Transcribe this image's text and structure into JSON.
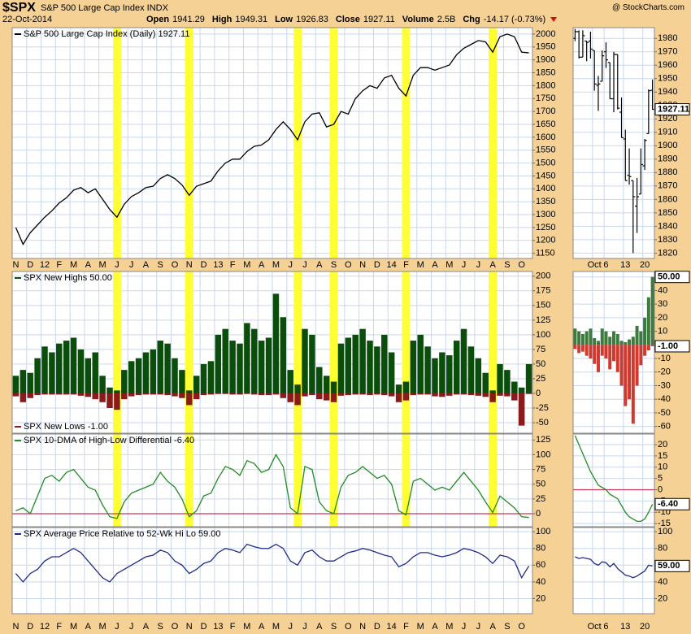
{
  "header": {
    "symbol": "$SPX",
    "name": "S&P 500 Large Cap Index INDX",
    "date": "22-Oct-2014",
    "quote": [
      {
        "label": "Open",
        "value": "1941.29"
      },
      {
        "label": "High",
        "value": "1949.31"
      },
      {
        "label": "Low",
        "value": "1926.83"
      },
      {
        "label": "Close",
        "value": "1927.11"
      },
      {
        "label": "Volume",
        "value": "2.5B"
      },
      {
        "label": "Chg",
        "value": "-14.17 (-0.73%)"
      }
    ],
    "source": "@ StockCharts.com"
  },
  "chart_data": [
    {
      "type": "line",
      "categories": [
        "N",
        null,
        "D",
        null,
        "12",
        null,
        "F",
        null,
        "M",
        null,
        "A",
        null,
        "M",
        null,
        "J",
        null,
        "J",
        null,
        "A",
        null,
        "S",
        null,
        "O",
        null,
        "N",
        null,
        "D",
        null,
        "13",
        null,
        "F",
        null,
        "M",
        null,
        "A",
        null,
        "M",
        null,
        "J",
        null,
        "J",
        null,
        "A",
        null,
        "S",
        null,
        "O",
        null,
        "N",
        null,
        "D",
        null,
        "14",
        null,
        "F",
        null,
        "M",
        null,
        "A",
        null,
        "M",
        null,
        "J",
        null,
        "J",
        null,
        "A",
        null,
        "S",
        null,
        "O",
        null
      ],
      "series": [
        {
          "name": "S&P 500 Large Cap Index (Daily) 1927.11",
          "color": "#000000",
          "values": [
            1250,
            1185,
            1230,
            1260,
            1290,
            1315,
            1345,
            1365,
            1395,
            1405,
            1385,
            1400,
            1360,
            1320,
            1290,
            1340,
            1370,
            1385,
            1405,
            1410,
            1440,
            1455,
            1440,
            1415,
            1375,
            1410,
            1420,
            1430,
            1470,
            1500,
            1515,
            1515,
            1545,
            1565,
            1570,
            1590,
            1630,
            1660,
            1630,
            1590,
            1660,
            1690,
            1695,
            1640,
            1650,
            1700,
            1690,
            1750,
            1780,
            1800,
            1790,
            1830,
            1840,
            1790,
            1760,
            1840,
            1870,
            1870,
            1860,
            1870,
            1880,
            1920,
            1945,
            1960,
            1975,
            1970,
            1930,
            1990,
            2000,
            1990,
            1930,
            1927.11
          ]
        }
      ],
      "ylim": [
        1130,
        2025
      ],
      "yticks": [
        1150,
        1200,
        1250,
        1300,
        1350,
        1400,
        1450,
        1500,
        1550,
        1600,
        1650,
        1700,
        1750,
        1800,
        1850,
        1900,
        1950,
        2000
      ],
      "grid": true,
      "highlights": [
        14,
        24,
        39,
        44,
        54,
        66
      ],
      "highlight_color": "#ffff33"
    },
    {
      "type": "ohlc",
      "categories": [
        null,
        null,
        null,
        null,
        null,
        "Oct",
        null,
        null,
        "6",
        null,
        null,
        null,
        null,
        "13",
        null,
        null,
        null,
        null,
        "20",
        null,
        null
      ],
      "open": [
        1980,
        1985,
        1966,
        1978,
        1978,
        1971,
        1945,
        1948,
        1970,
        1962,
        1935,
        1968,
        1925,
        1905,
        1878,
        1874,
        1855,
        1864,
        1885,
        1909,
        1941.29
      ],
      "high": [
        1987,
        1986,
        1986,
        1978,
        1985,
        1971,
        1952,
        1971,
        1977,
        1962,
        1970,
        1968,
        1936,
        1912,
        1898,
        1874,
        1876,
        1898,
        1905,
        1942,
        1949.31
      ],
      "low": [
        1978,
        1965,
        1966,
        1963,
        1965,
        1941,
        1926,
        1948,
        1958,
        1935,
        1925,
        1927,
        1906,
        1874,
        1871,
        1820,
        1835,
        1864,
        1882,
        1909,
        1926.83
      ],
      "close": [
        1985,
        1966,
        1982,
        1977,
        1972,
        1946,
        1946,
        1967,
        1964,
        1935,
        1968,
        1928,
        1906,
        1874,
        1877,
        1862,
        1862,
        1886,
        1904,
        1941,
        1927.11
      ],
      "color": "#000000",
      "last_label": "1927.11",
      "ylim": [
        1816,
        1988
      ],
      "yticks": [
        1820,
        1830,
        1840,
        1850,
        1860,
        1870,
        1880,
        1890,
        1900,
        1910,
        1920,
        1930,
        1940,
        1950,
        1960,
        1970,
        1980
      ],
      "grid": true
    },
    {
      "type": "bar",
      "series": [
        {
          "name": "SPX New Highs 50.00",
          "color": "#0b4d0b",
          "values": [
            30,
            40,
            35,
            60,
            80,
            70,
            85,
            90,
            95,
            75,
            60,
            70,
            30,
            10,
            5,
            40,
            55,
            60,
            70,
            75,
            90,
            85,
            60,
            40,
            5,
            30,
            50,
            55,
            100,
            110,
            90,
            85,
            120,
            110,
            90,
            95,
            170,
            130,
            40,
            15,
            110,
            100,
            45,
            30,
            20,
            85,
            95,
            100,
            110,
            90,
            80,
            100,
            70,
            15,
            20,
            90,
            100,
            80,
            60,
            70,
            65,
            90,
            110,
            80,
            60,
            35,
            5,
            50,
            40,
            20,
            10,
            50
          ]
        },
        {
          "name": "SPX New Lows -1.00",
          "color": "#8b1a1a",
          "values": [
            -5,
            -15,
            -8,
            -3,
            -2,
            -2,
            -2,
            -2,
            -2,
            -4,
            -6,
            -10,
            -15,
            -25,
            -28,
            -10,
            -5,
            -3,
            -2,
            -2,
            -2,
            -3,
            -5,
            -8,
            -20,
            -10,
            -3,
            -2,
            -1,
            -1,
            -2,
            -2,
            -1,
            -2,
            -3,
            -3,
            -2,
            -8,
            -15,
            -20,
            -5,
            -3,
            -10,
            -12,
            -15,
            -4,
            -3,
            -2,
            -2,
            -3,
            -2,
            -3,
            -5,
            -15,
            -12,
            -3,
            -2,
            -2,
            -5,
            -6,
            -4,
            -2,
            -2,
            -3,
            -4,
            -6,
            -15,
            -4,
            -5,
            -12,
            -55,
            -1
          ]
        }
      ],
      "ylim": [
        -68,
        208
      ],
      "yticks": [
        -50,
        -25,
        0,
        25,
        50,
        75,
        100,
        125,
        150,
        175,
        200
      ],
      "grid": true,
      "highlights": [
        14,
        24,
        39,
        44,
        54,
        66
      ],
      "highlight_color": "#ffff33"
    },
    {
      "type": "bar",
      "series": [
        {
          "color": "#3d7a3d",
          "last_label": "50.00",
          "values": [
            12,
            10,
            8,
            10,
            12,
            5,
            3,
            12,
            10,
            6,
            10,
            8,
            3,
            2,
            4,
            6,
            14,
            10,
            20,
            35,
            50
          ]
        },
        {
          "color": "#d03a2e",
          "last_label": "-1.00",
          "values": [
            -3,
            -6,
            -5,
            -8,
            -10,
            -14,
            -20,
            -8,
            -10,
            -18,
            -12,
            -20,
            -30,
            -45,
            -40,
            -58,
            -30,
            -15,
            -8,
            -4,
            -1
          ]
        }
      ],
      "ylim": [
        -65,
        54
      ],
      "yticks": [
        -60,
        -50,
        -40,
        -30,
        -20,
        -10,
        0,
        10,
        20,
        30,
        40,
        50
      ],
      "grid": true
    },
    {
      "type": "line",
      "series": [
        {
          "name": "SPX 10-DMA of High-Low Differential -6.40",
          "color": "#228b22",
          "values": [
            5,
            10,
            0,
            30,
            60,
            65,
            55,
            70,
            75,
            60,
            45,
            40,
            15,
            -5,
            -8,
            20,
            35,
            40,
            45,
            50,
            70,
            55,
            45,
            25,
            -5,
            5,
            30,
            35,
            60,
            80,
            75,
            65,
            90,
            85,
            70,
            75,
            100,
            80,
            10,
            0,
            80,
            75,
            20,
            5,
            0,
            45,
            65,
            70,
            80,
            70,
            60,
            65,
            50,
            5,
            -2,
            55,
            60,
            50,
            40,
            45,
            40,
            55,
            70,
            55,
            40,
            20,
            2,
            30,
            20,
            10,
            -5,
            -6.4
          ]
        }
      ],
      "ylim": [
        -22,
        135
      ],
      "yticks": [
        0,
        25,
        50,
        75,
        100,
        125
      ],
      "grid": true,
      "hline": 0,
      "hline_color": "#c8375a",
      "highlights": [
        14,
        24,
        39,
        44,
        54,
        66
      ],
      "highlight_color": "#ffff33"
    },
    {
      "type": "line",
      "series": [
        {
          "color": "#228b22",
          "last_label": "-6.40",
          "values": [
            24,
            20,
            16,
            12,
            8,
            5,
            2,
            1,
            0,
            -2,
            -3,
            -4,
            -7,
            -10,
            -12,
            -13,
            -14,
            -14,
            -13,
            -10,
            -6.4
          ]
        }
      ],
      "ylim": [
        -16.4,
        24.7
      ],
      "yticks": [
        -15,
        -10,
        -5,
        0,
        5,
        10,
        15,
        20
      ],
      "grid": true,
      "hline": 0,
      "hline_color": "#c8375a"
    },
    {
      "type": "line",
      "categories": [
        "N",
        null,
        "D",
        null,
        "12",
        null,
        "F",
        null,
        "M",
        null,
        "A",
        null,
        "M",
        null,
        "J",
        null,
        "J",
        null,
        "A",
        null,
        "S",
        null,
        "O",
        null,
        "N",
        null,
        "D",
        null,
        "13",
        null,
        "F",
        null,
        "M",
        null,
        "A",
        null,
        "M",
        null,
        "J",
        null,
        "J",
        null,
        "A",
        null,
        "S",
        null,
        "O",
        null,
        "N",
        null,
        "D",
        null,
        "14",
        null,
        "F",
        null,
        "M",
        null,
        "A",
        null,
        "M",
        null,
        "J",
        null,
        "J",
        null,
        "A",
        null,
        "S",
        null,
        "O",
        null
      ],
      "series": [
        {
          "name": "SPX Average Price Relative to 52-Wk Hi Lo 59.00",
          "color": "#1f2a8a",
          "values": [
            50,
            40,
            50,
            55,
            65,
            70,
            70,
            75,
            80,
            75,
            65,
            55,
            45,
            40,
            50,
            55,
            60,
            65,
            70,
            72,
            78,
            75,
            65,
            60,
            50,
            55,
            62,
            65,
            75,
            80,
            78,
            75,
            85,
            82,
            80,
            80,
            85,
            80,
            65,
            60,
            75,
            78,
            70,
            65,
            65,
            70,
            75,
            77,
            80,
            78,
            75,
            72,
            70,
            58,
            62,
            70,
            75,
            75,
            72,
            70,
            72,
            75,
            80,
            78,
            75,
            70,
            62,
            72,
            70,
            65,
            45,
            59
          ]
        }
      ],
      "ylim": [
        2,
        105
      ],
      "yticks": [
        20,
        40,
        60,
        80,
        100
      ],
      "grid": true
    },
    {
      "type": "line",
      "categories": [
        null,
        null,
        null,
        null,
        null,
        "Oct",
        null,
        null,
        "6",
        null,
        null,
        null,
        null,
        "13",
        null,
        null,
        null,
        null,
        "20",
        null,
        null
      ],
      "series": [
        {
          "color": "#1f2a8a",
          "last_label": "59.00",
          "values": [
            70,
            68,
            69,
            68,
            67,
            62,
            60,
            64,
            63,
            58,
            62,
            56,
            52,
            48,
            47,
            45,
            47,
            50,
            53,
            60,
            59
          ]
        }
      ],
      "ylim": [
        2,
        105
      ],
      "yticks": [
        20,
        40,
        60,
        80,
        100
      ],
      "grid": true
    }
  ]
}
